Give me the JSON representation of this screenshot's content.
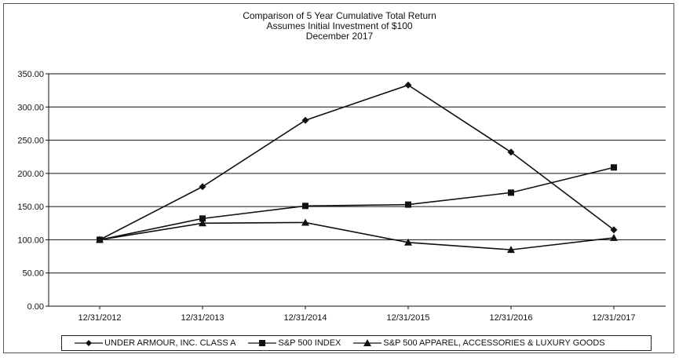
{
  "chart_data": {
    "type": "line",
    "title": "Comparison  of 5 Year Cumulative  Total Return",
    "subtitle": "Assumes Initial Investment  of $100",
    "subtitle2": "December  2017",
    "xlabel": "",
    "ylabel": "",
    "categories": [
      "12/31/2012",
      "12/31/2013",
      "12/31/2014",
      "12/31/2015",
      "12/31/2016",
      "12/31/2017"
    ],
    "ylim": [
      0,
      350
    ],
    "yticks": [
      "0.00",
      "50.00",
      "100.00",
      "150.00",
      "200.00",
      "250.00",
      "300.00",
      "350.00"
    ],
    "grid": true,
    "legend_position": "bottom",
    "series": [
      {
        "name": "UNDER ARMOUR, INC. CLASS A",
        "marker": "diamond",
        "values": [
          100,
          180,
          280,
          333,
          232,
          115
        ]
      },
      {
        "name": "S&P 500 INDEX",
        "marker": "square",
        "values": [
          100,
          132,
          151,
          153,
          171,
          209
        ]
      },
      {
        "name": "S&P 500 APPAREL, ACCESSORIES & LUXURY GOODS",
        "marker": "triangle",
        "values": [
          100,
          125,
          126,
          96,
          85,
          103
        ]
      }
    ],
    "line_color": "#111111"
  }
}
